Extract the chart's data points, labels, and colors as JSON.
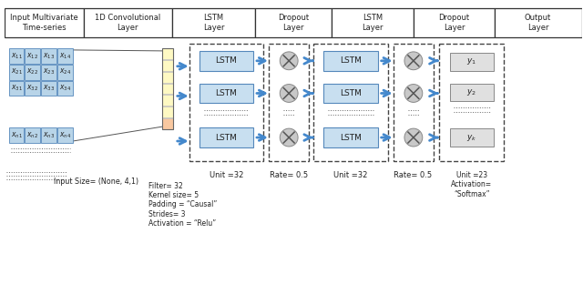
{
  "header_labels": [
    "Input Multivariate\nTime-series",
    "1D Convolutional\nLayer",
    "LSTM\nLayer",
    "Dropout\nLayer",
    "LSTM\nLayer",
    "Dropout\nLayer",
    "Output\nLayer"
  ],
  "input_matrix_rows": [
    [
      "$x_{11}$",
      "$x_{12}$",
      "$x_{13}$",
      "$x_{14}$"
    ],
    [
      "$x_{21}$",
      "$x_{22}$",
      "$x_{23}$",
      "$x_{24}$"
    ],
    [
      "$x_{31}$",
      "$x_{32}$",
      "$x_{33}$",
      "$x_{34}$"
    ],
    [
      "$x_{n1}$",
      "$x_{n2}$",
      "$x_{n3}$",
      "$x_{n4}$"
    ]
  ],
  "output_labels": [
    "$y_1$",
    "$y_2$",
    "$y_k$"
  ],
  "input_params": "Input Size= (None, 4,1)",
  "conv_params": "Filter= 32\nKernel size= 5\nPadding = “Causal”\nStrides= 3\nActivation = “Relu”",
  "lstm1_params": "Unit =32",
  "dropout1_params": "Rate= 0.5",
  "lstm2_params": "Unit =32",
  "dropout2_params": "Rate= 0.5",
  "output_params": "Unit =23\nActivation=\n“Softmax”",
  "cell_fill": "#b8d4e8",
  "cell_edge": "#5588bb",
  "lstm_fill": "#c8dff0",
  "lstm_edge": "#5588bb",
  "conv_yellow": "#fef9c3",
  "conv_pink": "#f9c8a0",
  "dropout_fill": "#c8c8c8",
  "dropout_edge": "#888888",
  "output_fill": "#e0e0e0",
  "output_edge": "#888888",
  "arrow_color": "#4488cc",
  "dashed_color": "#444444",
  "text_color": "#222222"
}
